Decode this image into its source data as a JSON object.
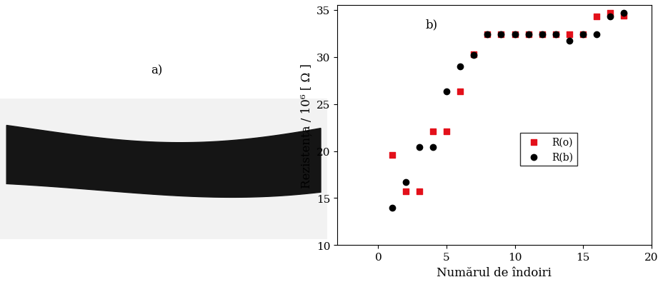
{
  "panel_labels": [
    "a)",
    "b)"
  ],
  "chart_data": {
    "type": "scatter",
    "x_label": "Numărul de îndoiri",
    "y_label": "Rezistența / 10⁶ [ Ω ]",
    "x": [
      1,
      2,
      3,
      4,
      5,
      6,
      7,
      8,
      9,
      10,
      11,
      12,
      13,
      14,
      15,
      16,
      17,
      18
    ],
    "series": [
      {
        "name": "R(o)",
        "color": "#e3101a",
        "marker": "square",
        "values": [
          19.6,
          15.7,
          15.7,
          22.1,
          22.1,
          26.3,
          30.3,
          32.4,
          32.4,
          32.4,
          32.4,
          32.4,
          32.4,
          32.4,
          32.4,
          34.3,
          34.7,
          34.4
        ]
      },
      {
        "name": "R(b)",
        "color": "#000000",
        "marker": "circle",
        "values": [
          14.0,
          16.7,
          20.4,
          20.4,
          26.3,
          29.0,
          30.2,
          32.4,
          32.4,
          32.4,
          32.4,
          32.4,
          32.4,
          31.7,
          32.4,
          32.4,
          34.3,
          34.7
        ]
      }
    ],
    "xlim": [
      -3,
      20
    ],
    "xticks": [
      0,
      5,
      10,
      15,
      20
    ],
    "ylim": [
      10,
      35.5
    ],
    "yticks": [
      10,
      15,
      20,
      25,
      30,
      35
    ],
    "grid": false,
    "legend": "center right"
  }
}
